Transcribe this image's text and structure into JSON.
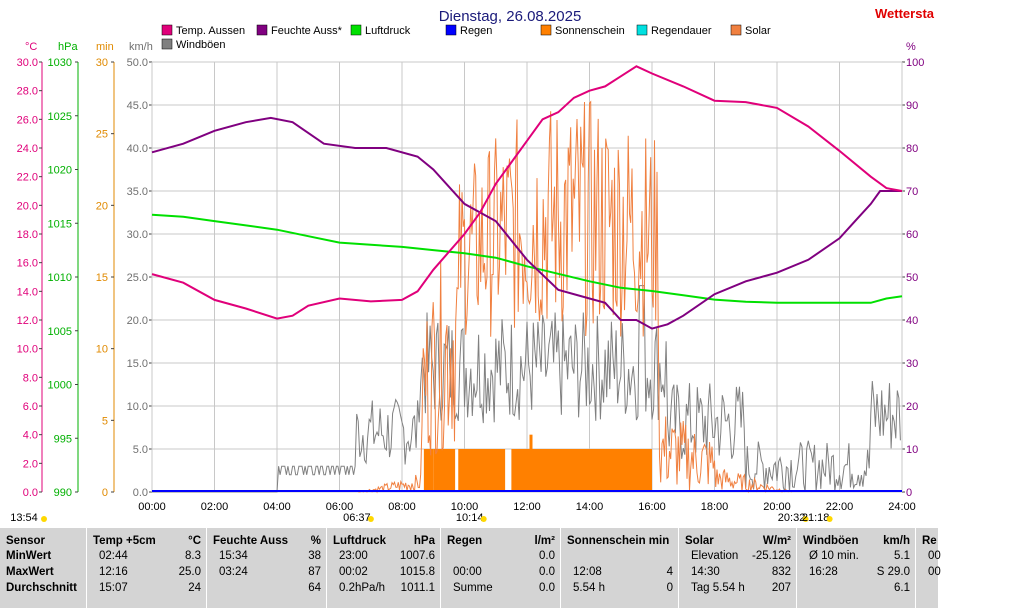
{
  "title": "Dienstag, 26.08.2025",
  "brand": "Wettersta",
  "axes": {
    "temp": {
      "unit": "°C",
      "color": "#e0007a",
      "ticks": [
        "30.0",
        "28.0",
        "26.0",
        "24.0",
        "22.0",
        "20.0",
        "18.0",
        "16.0",
        "14.0",
        "12.0",
        "10.0",
        "8.0",
        "6.0",
        "4.0",
        "2.0",
        "0.0"
      ]
    },
    "pressure": {
      "unit": "hPa",
      "color": "#00b000",
      "ticks": [
        "1030",
        "1025",
        "1020",
        "1015",
        "1010",
        "1005",
        "1000",
        "995",
        "990"
      ]
    },
    "minutes": {
      "unit": "min",
      "color": "#e08a00",
      "ticks": [
        "30",
        "25",
        "20",
        "15",
        "10",
        "5",
        "0"
      ]
    },
    "wind": {
      "unit": "km/h",
      "color": "#707070",
      "ticks": [
        "50.0",
        "45.0",
        "40.0",
        "35.0",
        "30.0",
        "25.0",
        "20.0",
        "15.0",
        "10.0",
        "5.0",
        "0.0"
      ]
    },
    "humidity": {
      "unit": "%",
      "color": "#800080",
      "ticks": [
        "100",
        "90",
        "80",
        "70",
        "60",
        "50",
        "40",
        "30",
        "20",
        "10",
        "0"
      ]
    },
    "time": {
      "ticks": [
        "00:00",
        "02:00",
        "04:00",
        "06:00",
        "08:00",
        "10:00",
        "12:00",
        "14:00",
        "16:00",
        "18:00",
        "20:00",
        "22:00",
        "24:00"
      ]
    }
  },
  "legend": [
    {
      "label": "Temp. Aussen",
      "color": "#e0007a"
    },
    {
      "label": "Feuchte Auss*",
      "color": "#800080"
    },
    {
      "label": "Luftdruck",
      "color": "#00e000"
    },
    {
      "label": "Regen",
      "color": "#0000ff"
    },
    {
      "label": "Sonnenschein",
      "color": "#ff8000"
    },
    {
      "label": "Regendauer",
      "color": "#00e0e0"
    },
    {
      "label": "Solar",
      "color": "#f08040"
    },
    {
      "label": "Windböen",
      "color": "#808080"
    }
  ],
  "markers": [
    {
      "time": "13:54",
      "hour": -1.2
    },
    {
      "time": "06:37",
      "hour": 6.62
    },
    {
      "time": "10:14",
      "hour": 10.23
    },
    {
      "time": "20:32",
      "hour": 20.53
    },
    {
      "time": "21:18",
      "hour": 21.3
    }
  ],
  "chart_data": {
    "type": "line",
    "x_range_hours": [
      0,
      24
    ],
    "grid": true,
    "series": [
      {
        "name": "Temp. Aussen",
        "axis": "temp",
        "ylim": [
          0,
          30
        ],
        "points": [
          [
            0,
            15.2
          ],
          [
            1,
            14.6
          ],
          [
            2,
            13.4
          ],
          [
            3,
            12.8
          ],
          [
            4,
            12.1
          ],
          [
            4.5,
            12.3
          ],
          [
            5,
            13.0
          ],
          [
            6,
            13.5
          ],
          [
            7,
            13.3
          ],
          [
            8,
            13.4
          ],
          [
            8.5,
            14.0
          ],
          [
            9,
            15.5
          ],
          [
            10,
            18.0
          ],
          [
            10.5,
            19.5
          ],
          [
            11,
            21.5
          ],
          [
            12,
            24.5
          ],
          [
            12.5,
            26.0
          ],
          [
            13,
            26.5
          ],
          [
            13.5,
            27.5
          ],
          [
            14,
            28.0
          ],
          [
            14.5,
            28.3
          ],
          [
            15,
            29.0
          ],
          [
            15.5,
            29.7
          ],
          [
            16,
            29.2
          ],
          [
            17,
            28.3
          ],
          [
            18,
            27.3
          ],
          [
            19,
            27.2
          ],
          [
            20,
            26.8
          ],
          [
            21,
            25.5
          ],
          [
            22,
            23.8
          ],
          [
            23,
            22.0
          ],
          [
            23.5,
            21.2
          ],
          [
            24,
            21.0
          ]
        ]
      },
      {
        "name": "Feuchte Auss*",
        "axis": "humidity",
        "ylim": [
          0,
          100
        ],
        "points": [
          [
            0,
            79
          ],
          [
            1,
            81
          ],
          [
            2,
            84
          ],
          [
            3,
            86
          ],
          [
            3.8,
            87
          ],
          [
            4.5,
            86
          ],
          [
            5.5,
            81
          ],
          [
            6.5,
            80
          ],
          [
            7.5,
            80
          ],
          [
            8.5,
            78
          ],
          [
            9,
            75
          ],
          [
            10,
            67
          ],
          [
            11,
            63
          ],
          [
            12,
            54
          ],
          [
            13,
            47
          ],
          [
            14,
            45
          ],
          [
            14.5,
            44
          ],
          [
            15,
            40
          ],
          [
            15.5,
            40
          ],
          [
            16,
            38
          ],
          [
            16.5,
            39
          ],
          [
            17,
            41
          ],
          [
            18,
            46
          ],
          [
            19,
            49
          ],
          [
            20,
            51
          ],
          [
            21,
            54
          ],
          [
            22,
            59
          ],
          [
            22.5,
            63
          ],
          [
            23,
            67
          ],
          [
            23.3,
            70
          ],
          [
            24,
            70
          ]
        ]
      },
      {
        "name": "Luftdruck",
        "axis": "pressure",
        "ylim": [
          990,
          1030
        ],
        "points": [
          [
            0,
            1015.8
          ],
          [
            1,
            1015.6
          ],
          [
            2,
            1015.2
          ],
          [
            3,
            1014.8
          ],
          [
            4,
            1014.4
          ],
          [
            5,
            1013.8
          ],
          [
            6,
            1013.2
          ],
          [
            7,
            1013.0
          ],
          [
            8,
            1012.8
          ],
          [
            9,
            1012.5
          ],
          [
            10,
            1012.2
          ],
          [
            11,
            1011.8
          ],
          [
            12,
            1011.0
          ],
          [
            13,
            1010.3
          ],
          [
            14,
            1009.6
          ],
          [
            15,
            1009.0
          ],
          [
            16,
            1008.7
          ],
          [
            17,
            1008.3
          ],
          [
            18,
            1007.9
          ],
          [
            19,
            1007.7
          ],
          [
            20,
            1007.6
          ],
          [
            21,
            1007.6
          ],
          [
            22,
            1007.6
          ],
          [
            23,
            1007.6
          ],
          [
            23.5,
            1008.0
          ],
          [
            24,
            1008.2
          ]
        ]
      },
      {
        "name": "Windböen",
        "axis": "wind",
        "ylim": [
          0,
          50
        ],
        "max": 29.0
      },
      {
        "name": "Solar",
        "axis": "minutes",
        "max_wm2": 832
      },
      {
        "name": "Sonnenschein",
        "axis": "minutes",
        "blocks": [
          [
            8.7,
            9.0
          ],
          [
            9.0,
            9.7
          ],
          [
            9.8,
            11.3
          ],
          [
            11.5,
            16.0
          ]
        ]
      },
      {
        "name": "Regen",
        "axis": "rain",
        "values": [
          0,
          0
        ]
      }
    ]
  },
  "stats": {
    "labels": {
      "sensor": "Sensor",
      "min": "MinWert",
      "max": "MaxWert",
      "avg": "Durchschnitt"
    },
    "columns": [
      {
        "header": "Temp +5cm",
        "unit": "°C",
        "min_time": "02:44",
        "min_val": "8.3",
        "max_time": "12:16",
        "max_val": "25.0",
        "avg_time": "15:07",
        "avg_val": "24"
      },
      {
        "header": "Feuchte Auss",
        "unit": "%",
        "min_time": "15:34",
        "min_val": "38",
        "max_time": "03:24",
        "max_val": "87",
        "avg_time": "",
        "avg_val": "64"
      },
      {
        "header": "Luftdruck",
        "unit": "hPa",
        "min_time": "23:00",
        "min_val": "1007.6",
        "max_time": "00:02",
        "max_val": "1015.8",
        "avg_time": "0.2hPa/h",
        "avg_val": "1011.1"
      },
      {
        "header": "Regen",
        "unit": "l/m²",
        "min_time": "",
        "min_val": "0.0",
        "max_time": "00:00",
        "max_val": "0.0",
        "avg_time": "Summe",
        "avg_val": "0.0"
      },
      {
        "header": "Sonnenschein min",
        "unit": "",
        "min_time": "",
        "min_val": "",
        "max_time": "12:08",
        "max_val": "4",
        "avg_time": "5.54 h",
        "avg_val": "0"
      },
      {
        "header": "Solar",
        "unit": "W/m²",
        "min_time": "Elevation",
        "min_val": "-25.126",
        "max_time": "14:30",
        "max_val": "832",
        "avg_time": "Tag 5.54 h",
        "avg_val": "207"
      },
      {
        "header": "Windböen",
        "unit": "km/h",
        "min_time": "Ø 10 min.",
        "min_val": "5.1",
        "max_time": "16:28",
        "max_val": "S 29.0",
        "avg_time": "",
        "avg_val": "6.1"
      },
      {
        "header": "Re",
        "unit": "",
        "min_time": "00",
        "min_val": "",
        "max_time": "00",
        "max_val": "",
        "avg_time": "",
        "avg_val": ""
      }
    ]
  }
}
